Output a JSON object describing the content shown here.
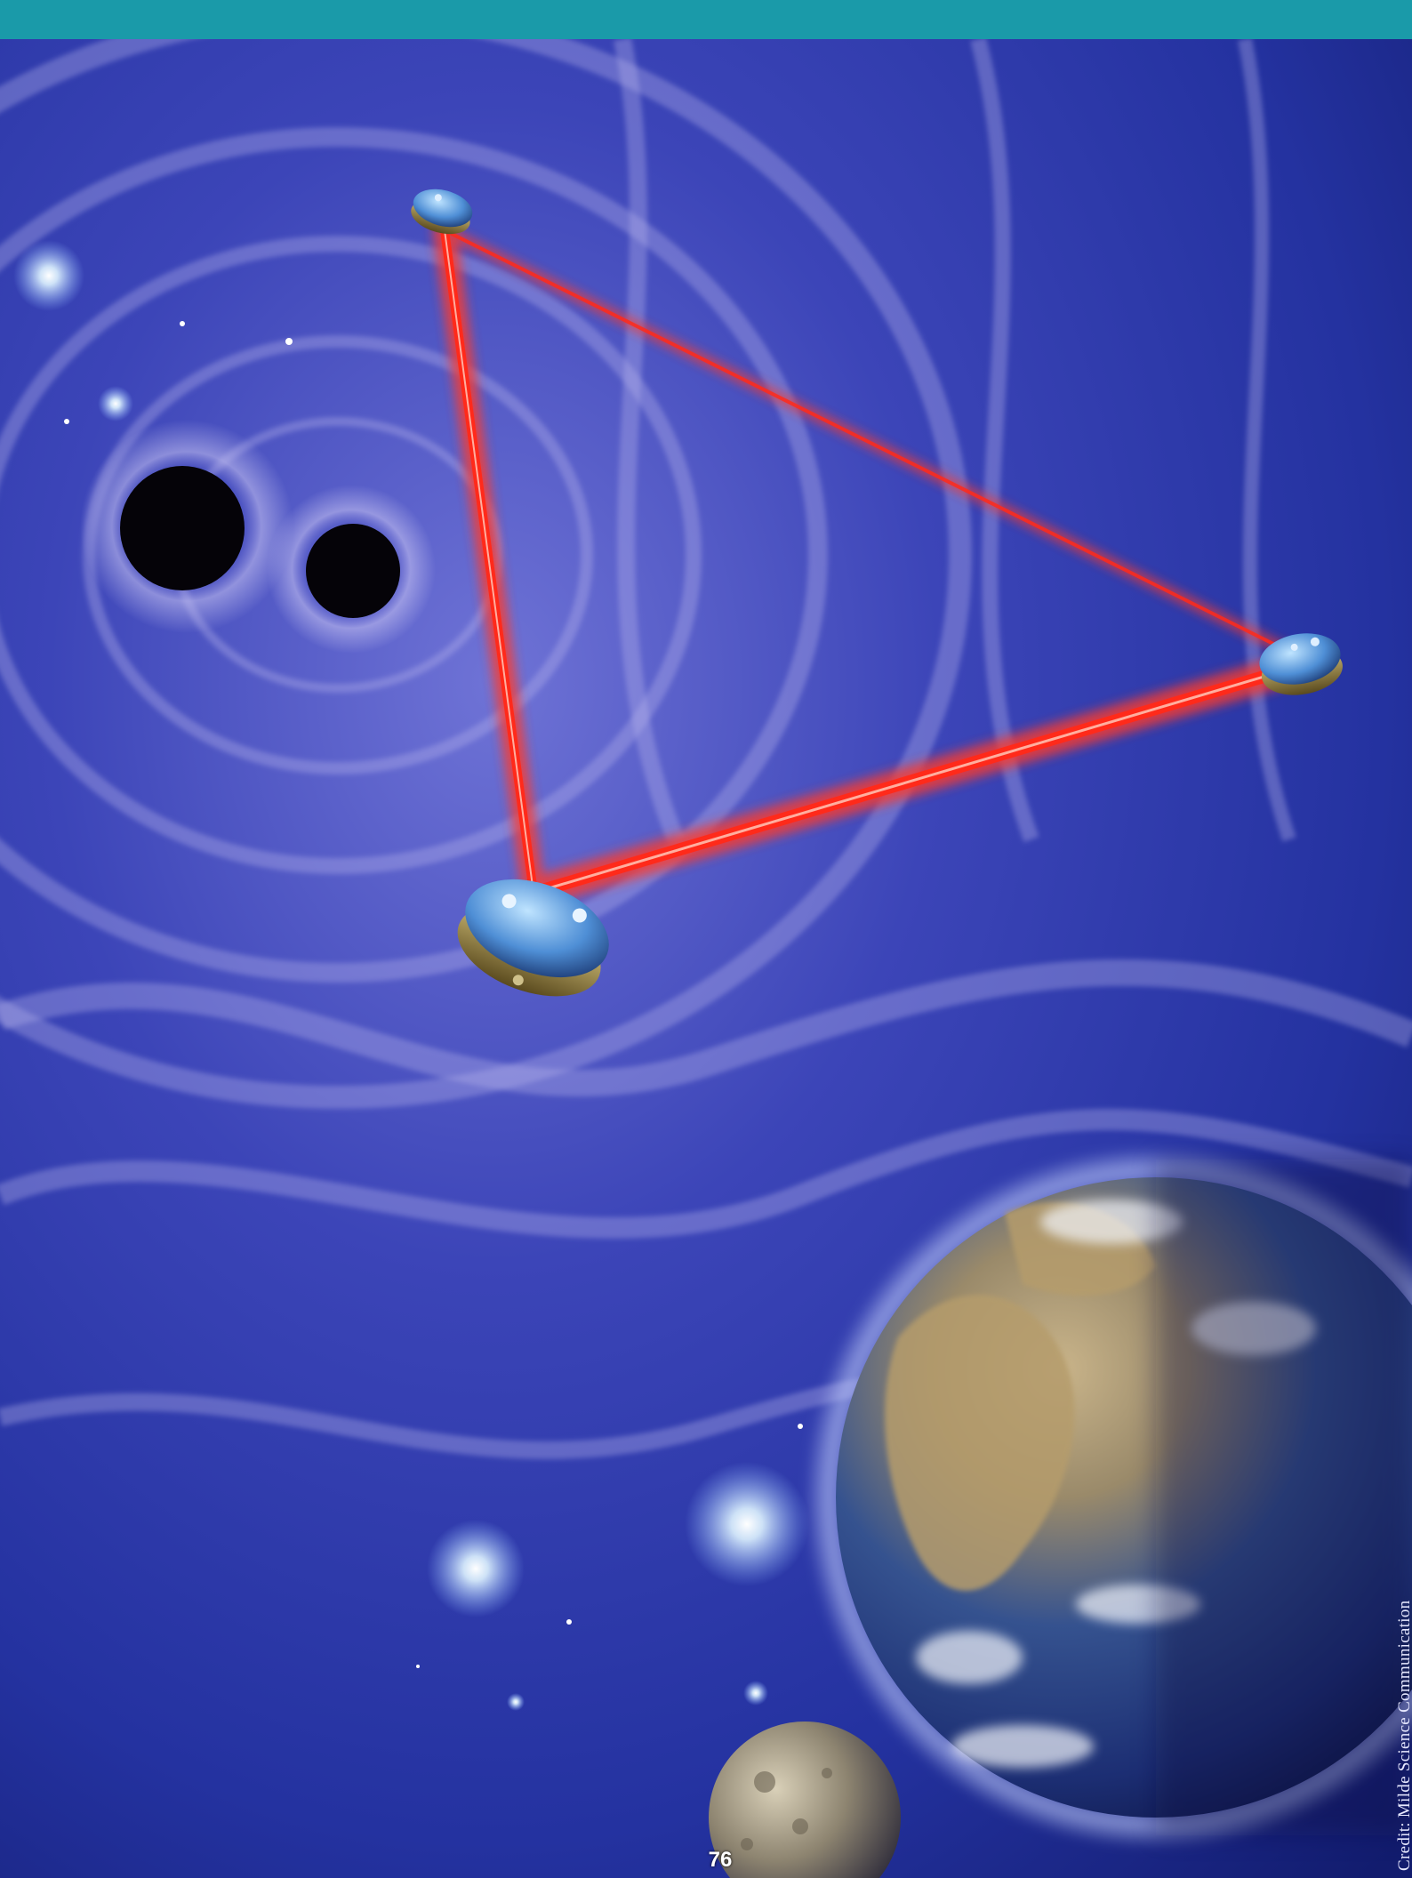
{
  "page": {
    "number": "76",
    "credit": "Credit: Milde  Science Communication",
    "band_color": "#1a9aa9"
  },
  "illustration": {
    "subjects": [
      "binary-black-holes",
      "three-spacecraft-laser-triangle",
      "earth",
      "moon",
      "stars",
      "spacetime-ripples"
    ],
    "colors": {
      "space": "#1b2a8a",
      "laser": "#ff2a1a",
      "ripples": "#b9b6ef"
    }
  }
}
